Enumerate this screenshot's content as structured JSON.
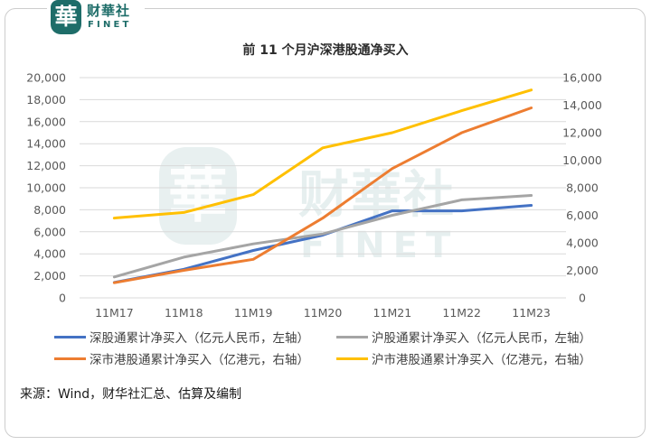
{
  "colors": {
    "brand": "#1E6D69"
  },
  "logo": {
    "mark": "華",
    "name": "财華社",
    "sub": "FINET"
  },
  "watermark": {
    "mark": "華",
    "name": "财華社",
    "sub": "FINET"
  },
  "chart_data": {
    "type": "line",
    "title": "前 11 个月沪深港股通净买入",
    "categories": [
      "11M17",
      "11M18",
      "11M19",
      "11M20",
      "11M21",
      "11M22",
      "11M23"
    ],
    "y_left": {
      "ylim": [
        0,
        20000
      ],
      "tick_labels": [
        "0",
        "2,000",
        "4,000",
        "6,000",
        "8,000",
        "10,000",
        "12,000",
        "14,000",
        "16,000",
        "18,000",
        "20,000"
      ]
    },
    "y_right": {
      "ylim": [
        0,
        16000
      ],
      "tick_labels": [
        "0",
        "2,000",
        "4,000",
        "6,000",
        "8,000",
        "10,000",
        "12,000",
        "14,000",
        "16,000"
      ]
    },
    "grid": true,
    "legend_position": "bottom",
    "series": [
      {
        "name": "深股通累计净买入（亿元人民币，左轴）",
        "axis": "left",
        "color": "#4472C4",
        "values": [
          1400,
          2600,
          4300,
          5700,
          7900,
          7900,
          8400
        ]
      },
      {
        "name": "沪股通累计净买入（亿元人民币，左轴）",
        "axis": "left",
        "color": "#A5A5A5",
        "values": [
          1900,
          3700,
          4900,
          5800,
          7500,
          8900,
          9300
        ]
      },
      {
        "name": "深市港股通累计净买入（亿港元，右轴）",
        "axis": "right",
        "color": "#ED7D31",
        "values": [
          1100,
          2000,
          2800,
          5800,
          9400,
          12000,
          13800
        ]
      },
      {
        "name": "沪市港股通累计净买入（亿港元，右轴）",
        "axis": "right",
        "color": "#FFC000",
        "values": [
          5800,
          6200,
          7500,
          10900,
          12000,
          13600,
          15100
        ]
      }
    ]
  },
  "source": "来源：Wind，财华社汇总、估算及编制"
}
